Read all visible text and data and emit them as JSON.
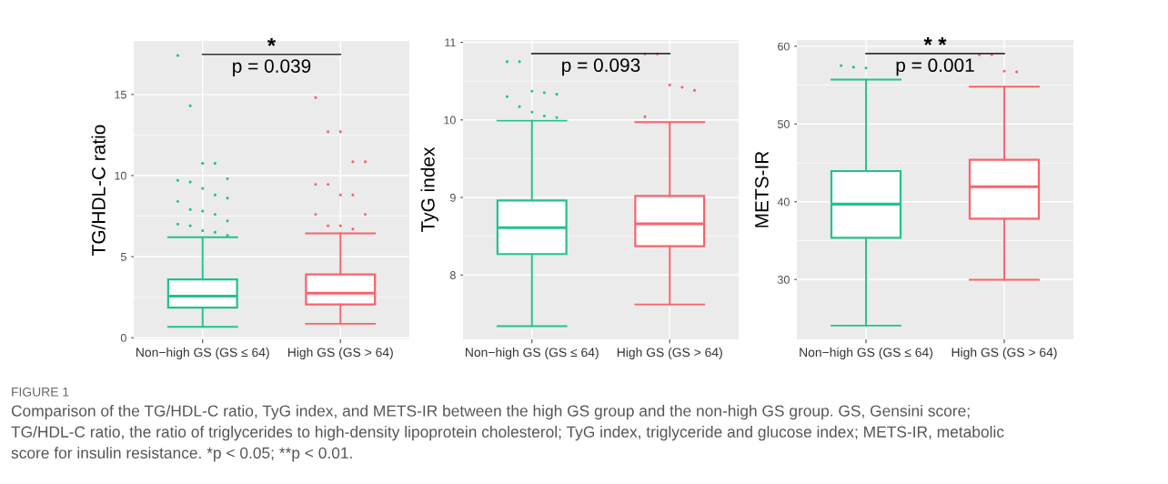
{
  "chart_data": [
    {
      "type": "box",
      "ylabel": "TG/HDL-C ratio",
      "categories": [
        "Non−high GS (GS ≤ 64)",
        "High GS (GS > 64)"
      ],
      "ylim": [
        -0.1,
        18.3
      ],
      "yticks": [
        0,
        5,
        10,
        15
      ],
      "grid": true,
      "annotations": [
        "*",
        "p = 0.039"
      ],
      "series": [
        {
          "color": "#22c38b",
          "boxes": [
            {
              "low": 0.67,
              "q1": 1.86,
              "median": 2.57,
              "q3": 3.59,
              "high": 6.2,
              "outliers": [
                17.4,
                14.3,
                10.75,
                10.75,
                9.8,
                9.7,
                9.6,
                9.2,
                8.8,
                8.6,
                8.4,
                7.9,
                7.8,
                7.6,
                7.2,
                7.0,
                6.9,
                6.6,
                6.5,
                6.3
              ]
            },
            null
          ]
        },
        {
          "color": "#f8636d",
          "boxes": [
            null,
            {
              "low": 0.86,
              "q1": 2.05,
              "median": 2.75,
              "q3": 3.91,
              "high": 6.44,
              "outliers": [
                14.8,
                12.7,
                12.7,
                10.85,
                10.85,
                9.45,
                9.45,
                8.8,
                8.8,
                7.6,
                7.6,
                6.9,
                6.9,
                6.7
              ]
            }
          ]
        }
      ]
    },
    {
      "type": "box",
      "ylabel": "TyG index",
      "categories": [
        "Non−high GS (GS ≤ 64)",
        "High GS (GS > 64)"
      ],
      "ylim": [
        7.17,
        11.03
      ],
      "yticks": [
        8,
        9,
        10,
        11
      ],
      "grid": true,
      "annotations": [
        "p = 0.093"
      ],
      "series": [
        {
          "color": "#22c38b",
          "boxes": [
            {
              "low": 7.34,
              "q1": 8.27,
              "median": 8.61,
              "q3": 8.96,
              "high": 9.99,
              "outliers": [
                10.75,
                10.75,
                10.37,
                10.35,
                10.33,
                10.3,
                10.17,
                10.1,
                10.05,
                10.03
              ]
            },
            null
          ]
        },
        {
          "color": "#f8636d",
          "boxes": [
            null,
            {
              "low": 7.62,
              "q1": 8.37,
              "median": 8.66,
              "q3": 9.02,
              "high": 9.97,
              "outliers": [
                10.85,
                10.85,
                10.45,
                10.42,
                10.38,
                10.04
              ]
            }
          ]
        }
      ]
    },
    {
      "type": "box",
      "ylabel": "METS-IR",
      "categories": [
        "Non−high GS (GS ≤ 64)",
        "High GS (GS > 64)"
      ],
      "ylim": [
        22.3,
        60.8
      ],
      "yticks": [
        30,
        40,
        50,
        60
      ],
      "grid": true,
      "annotations": [
        "* *",
        "p = 0.001"
      ],
      "series": [
        {
          "color": "#22c38b",
          "boxes": [
            {
              "low": 24.07,
              "q1": 35.35,
              "median": 39.69,
              "q3": 43.95,
              "high": 55.7,
              "outliers": [
                57.5,
                57.3,
                57.2
              ]
            },
            null
          ]
        },
        {
          "color": "#f8636d",
          "boxes": [
            null,
            {
              "low": 29.96,
              "q1": 37.83,
              "median": 41.94,
              "q3": 45.39,
              "high": 54.8,
              "outliers": [
                58.9,
                58.9,
                56.8,
                56.7
              ]
            }
          ]
        }
      ]
    },
    {
      "type": "other",
      "title": "FIGURE 1",
      "annotations": [
        "Comparison of the TG/HDL-C ratio, TyG index, and METS-IR between the high GS group and the non-high GS group. GS, Gensini score;\nTG/HDL-C ratio, the ratio of triglycerides to high-density lipoprotein cholesterol; TyG index, triglyceride and glucose index; METS-IR, metabolic\nscore for insulin resistance. *p < 0.05; **p < 0.01."
      ]
    }
  ]
}
